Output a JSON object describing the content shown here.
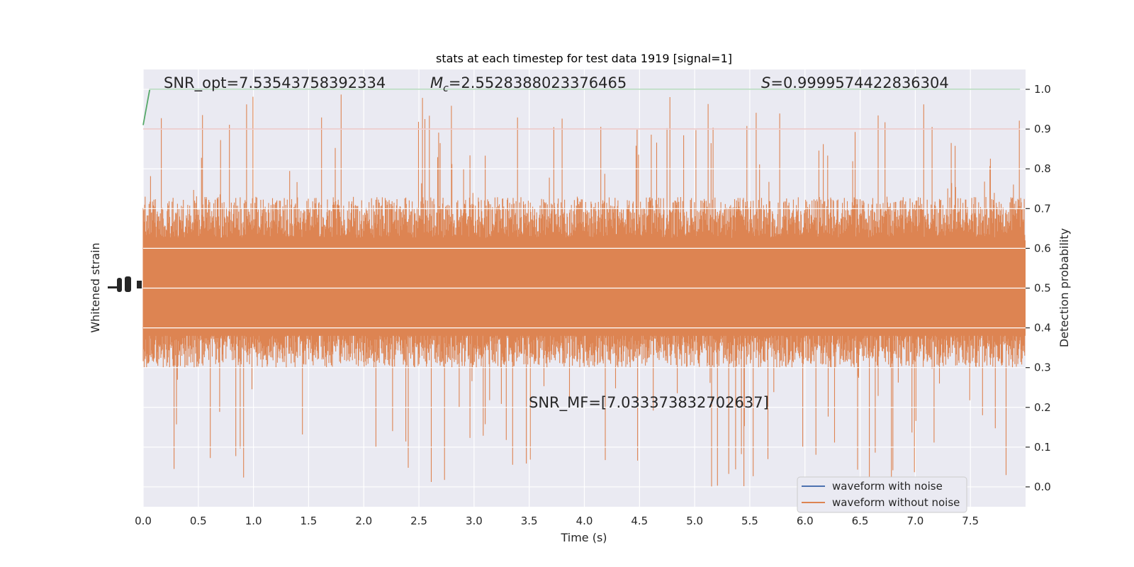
{
  "chart_data": {
    "type": "line",
    "title": "stats at each timestep for test data 1919 [signal=1]",
    "xlabel": "Time (s)",
    "ylabel_left": "Whitened strain",
    "ylabel_right": "Detection probability",
    "xlim": [
      0.0,
      8.0
    ],
    "ylim_right": [
      -0.05,
      1.05
    ],
    "x_ticks": [
      "0.0",
      "0.5",
      "1.0",
      "1.5",
      "2.0",
      "2.5",
      "3.0",
      "3.5",
      "4.0",
      "4.5",
      "5.0",
      "5.5",
      "6.0",
      "6.5",
      "7.0",
      "7.5"
    ],
    "y_ticks_right": [
      "0.0",
      "0.1",
      "0.2",
      "0.3",
      "0.4",
      "0.5",
      "0.6",
      "0.7",
      "0.8",
      "0.9",
      "1.0"
    ],
    "annotations": {
      "snr_opt": "SNR_opt=7.53543758392334",
      "mc_symbol": "M",
      "mc_sub": "c",
      "mc_value": "=2.5528388023376465",
      "s_symbol": "S",
      "s_value": "=0.9999574422836304",
      "snr_mf": "SNR_MF=[7.033373832702637]"
    },
    "series": [
      {
        "name": "waveform with noise",
        "color": "#4c72b0"
      },
      {
        "name": "waveform without noise",
        "color": "#dd8452",
        "band_center": 0.5,
        "band_typical": [
          0.3,
          0.73
        ],
        "extremes": [
          0.0,
          1.0
        ]
      },
      {
        "color": "#55a868",
        "x": [
          0.0,
          0.06,
          7.95
        ],
        "values": [
          0.91,
          1.0,
          1.0
        ]
      },
      {
        "color": "#c44e52",
        "x": [
          0.0,
          7.95
        ],
        "values": [
          0.9,
          0.9
        ]
      }
    ],
    "grid": true,
    "legend_position": "lower right",
    "background": "#eaeaf2",
    "grid_color": "#ffffff"
  }
}
